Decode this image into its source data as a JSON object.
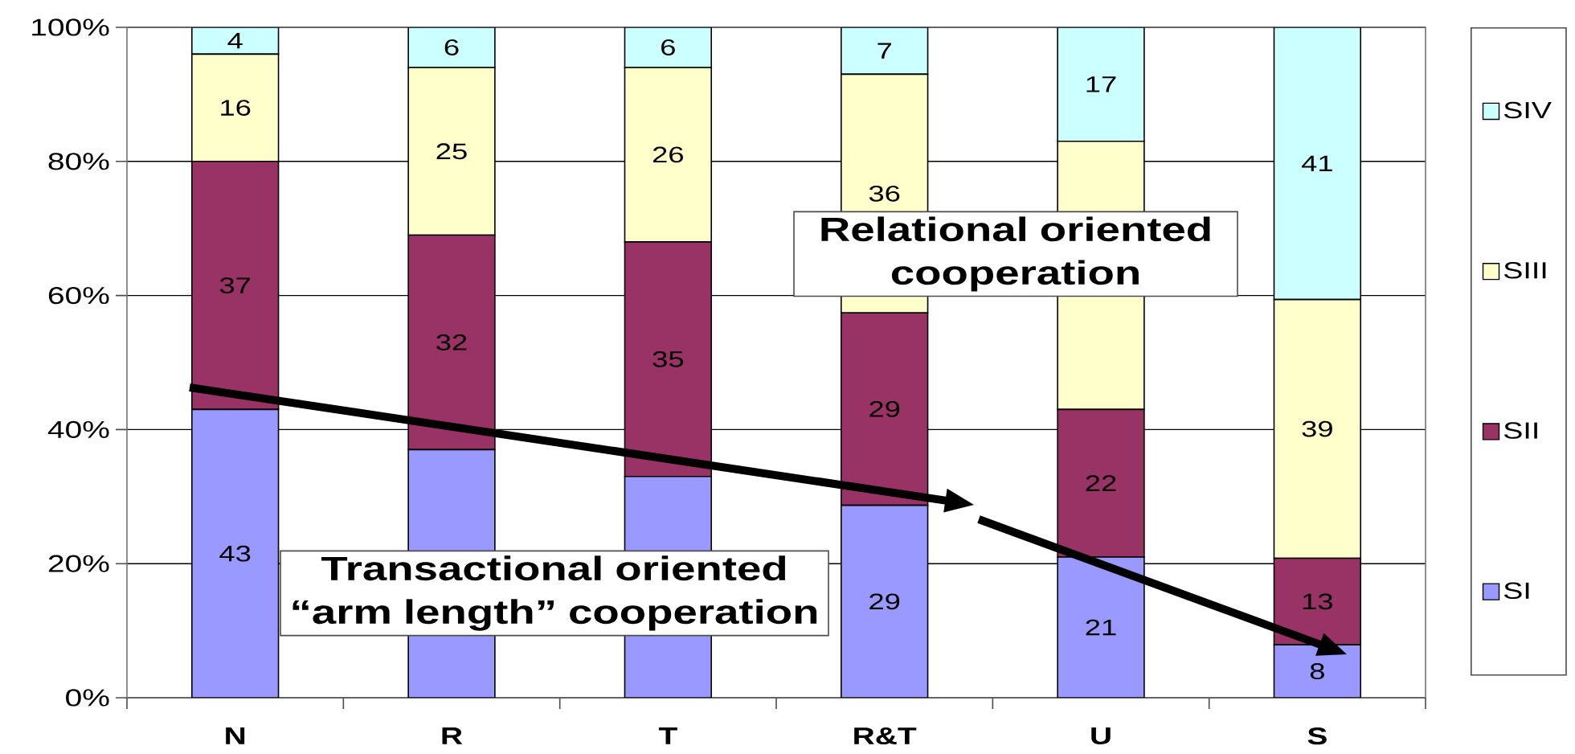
{
  "chart_data": {
    "type": "bar",
    "stacked": true,
    "categories": [
      "N",
      "R",
      "T",
      "R&T",
      "U",
      "S"
    ],
    "series": [
      {
        "name": "SI",
        "color": "#9999ff",
        "values": [
          43,
          37,
          33,
          28.7,
          21,
          7.9
        ],
        "value_labels": [
          "43",
          null,
          null,
          "29",
          "21",
          "8"
        ]
      },
      {
        "name": "SII",
        "color": "#993366",
        "values": [
          37,
          32,
          35,
          28.7,
          22,
          12.9
        ],
        "value_labels": [
          "37",
          "32",
          "35",
          "29",
          "22",
          "13"
        ]
      },
      {
        "name": "SIII",
        "color": "#ffffcc",
        "values": [
          16,
          25,
          26,
          35.6,
          40,
          38.6
        ],
        "value_labels": [
          "16",
          "25",
          "26",
          "36",
          null,
          "39"
        ]
      },
      {
        "name": "SIV",
        "color": "#ccffff",
        "values": [
          4,
          6,
          6,
          7.0,
          17,
          40.6
        ],
        "value_labels": [
          "4",
          "6",
          "6",
          "7",
          "17",
          "41"
        ]
      }
    ],
    "ylim": [
      0,
      100
    ],
    "yticks": [
      {
        "value": 0,
        "label": "0%"
      },
      {
        "value": 20,
        "label": "20%"
      },
      {
        "value": 40,
        "label": "40%"
      },
      {
        "value": 60,
        "label": "60%"
      },
      {
        "value": 80,
        "label": "80%"
      },
      {
        "value": 100,
        "label": "100%"
      }
    ],
    "grid": "y",
    "legend": "right",
    "annotations": [
      "Relational oriented cooperation",
      "Transactional oriented “arm length” cooperation"
    ]
  }
}
